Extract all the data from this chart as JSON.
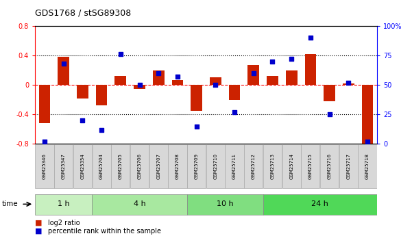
{
  "title": "GDS1768 / stSG89308",
  "samples": [
    "GSM25346",
    "GSM25347",
    "GSM25354",
    "GSM25704",
    "GSM25705",
    "GSM25706",
    "GSM25707",
    "GSM25708",
    "GSM25709",
    "GSM25710",
    "GSM25711",
    "GSM25712",
    "GSM25713",
    "GSM25714",
    "GSM25715",
    "GSM25716",
    "GSM25717",
    "GSM25718"
  ],
  "log2_ratio": [
    -0.52,
    0.38,
    -0.18,
    -0.28,
    0.12,
    -0.05,
    0.2,
    0.07,
    -0.35,
    0.1,
    -0.2,
    0.27,
    0.12,
    0.2,
    0.42,
    -0.22,
    0.02,
    -0.8
  ],
  "percentile": [
    2,
    68,
    20,
    12,
    76,
    50,
    60,
    57,
    15,
    50,
    27,
    60,
    70,
    72,
    90,
    25,
    52,
    2
  ],
  "bar_color": "#cc2200",
  "dot_color": "#0000cc",
  "ylim_left": [
    -0.8,
    0.8
  ],
  "ylim_right": [
    0,
    100
  ],
  "yticks_left": [
    -0.8,
    -0.4,
    0.0,
    0.4,
    0.8
  ],
  "yticks_right": [
    0,
    25,
    50,
    75,
    100
  ],
  "yticklabels_right": [
    "0",
    "25",
    "50",
    "75",
    "100%"
  ],
  "group_labels": [
    "1 h",
    "4 h",
    "10 h",
    "24 h"
  ],
  "group_starts": [
    0,
    3,
    8,
    12
  ],
  "group_ends": [
    3,
    8,
    12,
    18
  ],
  "group_colors": [
    "#c8f0c0",
    "#a8e8a0",
    "#80de80",
    "#50d858"
  ],
  "background_color": "#ffffff",
  "title_fontsize": 9,
  "bar_width": 0.6
}
